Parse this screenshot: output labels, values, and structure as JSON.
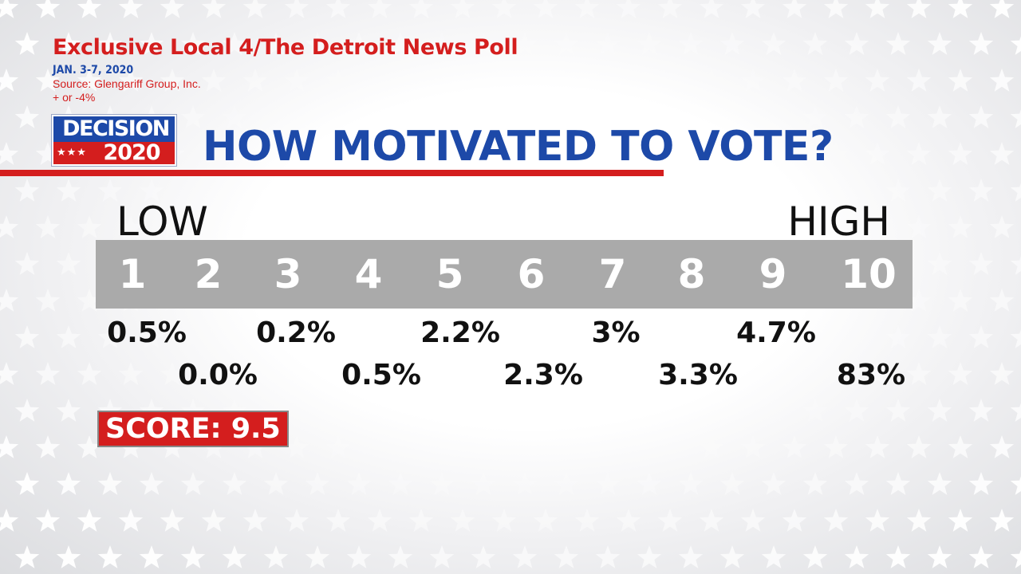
{
  "poll": {
    "title": "Exclusive Local 4/The Detroit News Poll",
    "date": "JAN. 3-7, 2020",
    "source": "Source: Glengariff Group, Inc.",
    "margin": "+ or -4%"
  },
  "logo": {
    "line1": "DECISION",
    "line2": "2020",
    "stars": "★★★"
  },
  "headline": "HOW MOTIVATED TO VOTE?",
  "scale": {
    "low_label": "LOW",
    "high_label": "HIGH",
    "numbers": [
      "1",
      "2",
      "3",
      "4",
      "5",
      "6",
      "7",
      "8",
      "9",
      "10"
    ]
  },
  "results": {
    "p1": "0.5%",
    "p2": "0.0%",
    "p3": "0.2%",
    "p4": "0.5%",
    "p5": "2.2%",
    "p6": "2.3%",
    "p7": "3%",
    "p8": "3.3%",
    "p9": "4.7%",
    "p10": "83%"
  },
  "score": "SCORE: 9.5",
  "colors": {
    "red": "#d41e1e",
    "blue": "#1d49a8",
    "bar_gray": "#aaaaaa"
  }
}
